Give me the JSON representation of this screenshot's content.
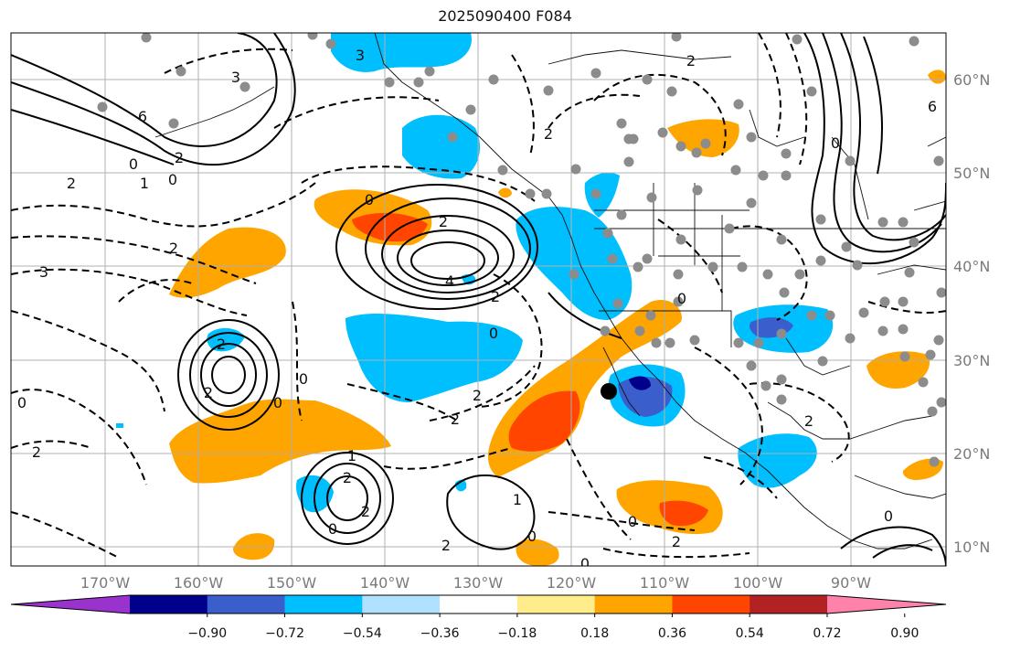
{
  "title": "2025090400 F084",
  "lon_labels": [
    "170°W",
    "160°W",
    "150°W",
    "140°W",
    "130°W",
    "120°W",
    "110°W",
    "100°W",
    "90°W"
  ],
  "lat_labels": [
    "60°N",
    "50°N",
    "40°N",
    "30°N",
    "20°N",
    "10°N"
  ],
  "colorbar": {
    "colors": [
      "#9a32cd",
      "#00008b",
      "#3a5fcd",
      "#00bfff",
      "#b0e2ff",
      "#ffffff",
      "#ffec8b",
      "#ffa500",
      "#ff4500",
      "#b22222",
      "#ff82ab"
    ],
    "tick_labels": [
      "−0.90",
      "−0.72",
      "−0.54",
      "−0.36",
      "−0.18",
      "0.18",
      "0.36",
      "0.54",
      "0.72",
      "0.90"
    ]
  },
  "contour_labels": [
    "3",
    "6",
    "2",
    "0",
    "2",
    "1",
    "0",
    "2",
    "3",
    "2",
    "2",
    "3",
    "4",
    "2",
    "0",
    "0",
    "2",
    "2",
    "0",
    "2",
    "0",
    "2",
    "1",
    "2",
    "2",
    "0",
    "0",
    "1",
    "2",
    "0",
    "0",
    "0",
    "2",
    "2",
    "0",
    "2",
    "6",
    "0",
    "2",
    "0"
  ],
  "colors": {
    "positive": "#ffa500",
    "strong_positive": "#ff4500",
    "negative": "#00bfff",
    "strong_negative": "#3a5fcd",
    "station": "#8c8c8c"
  }
}
